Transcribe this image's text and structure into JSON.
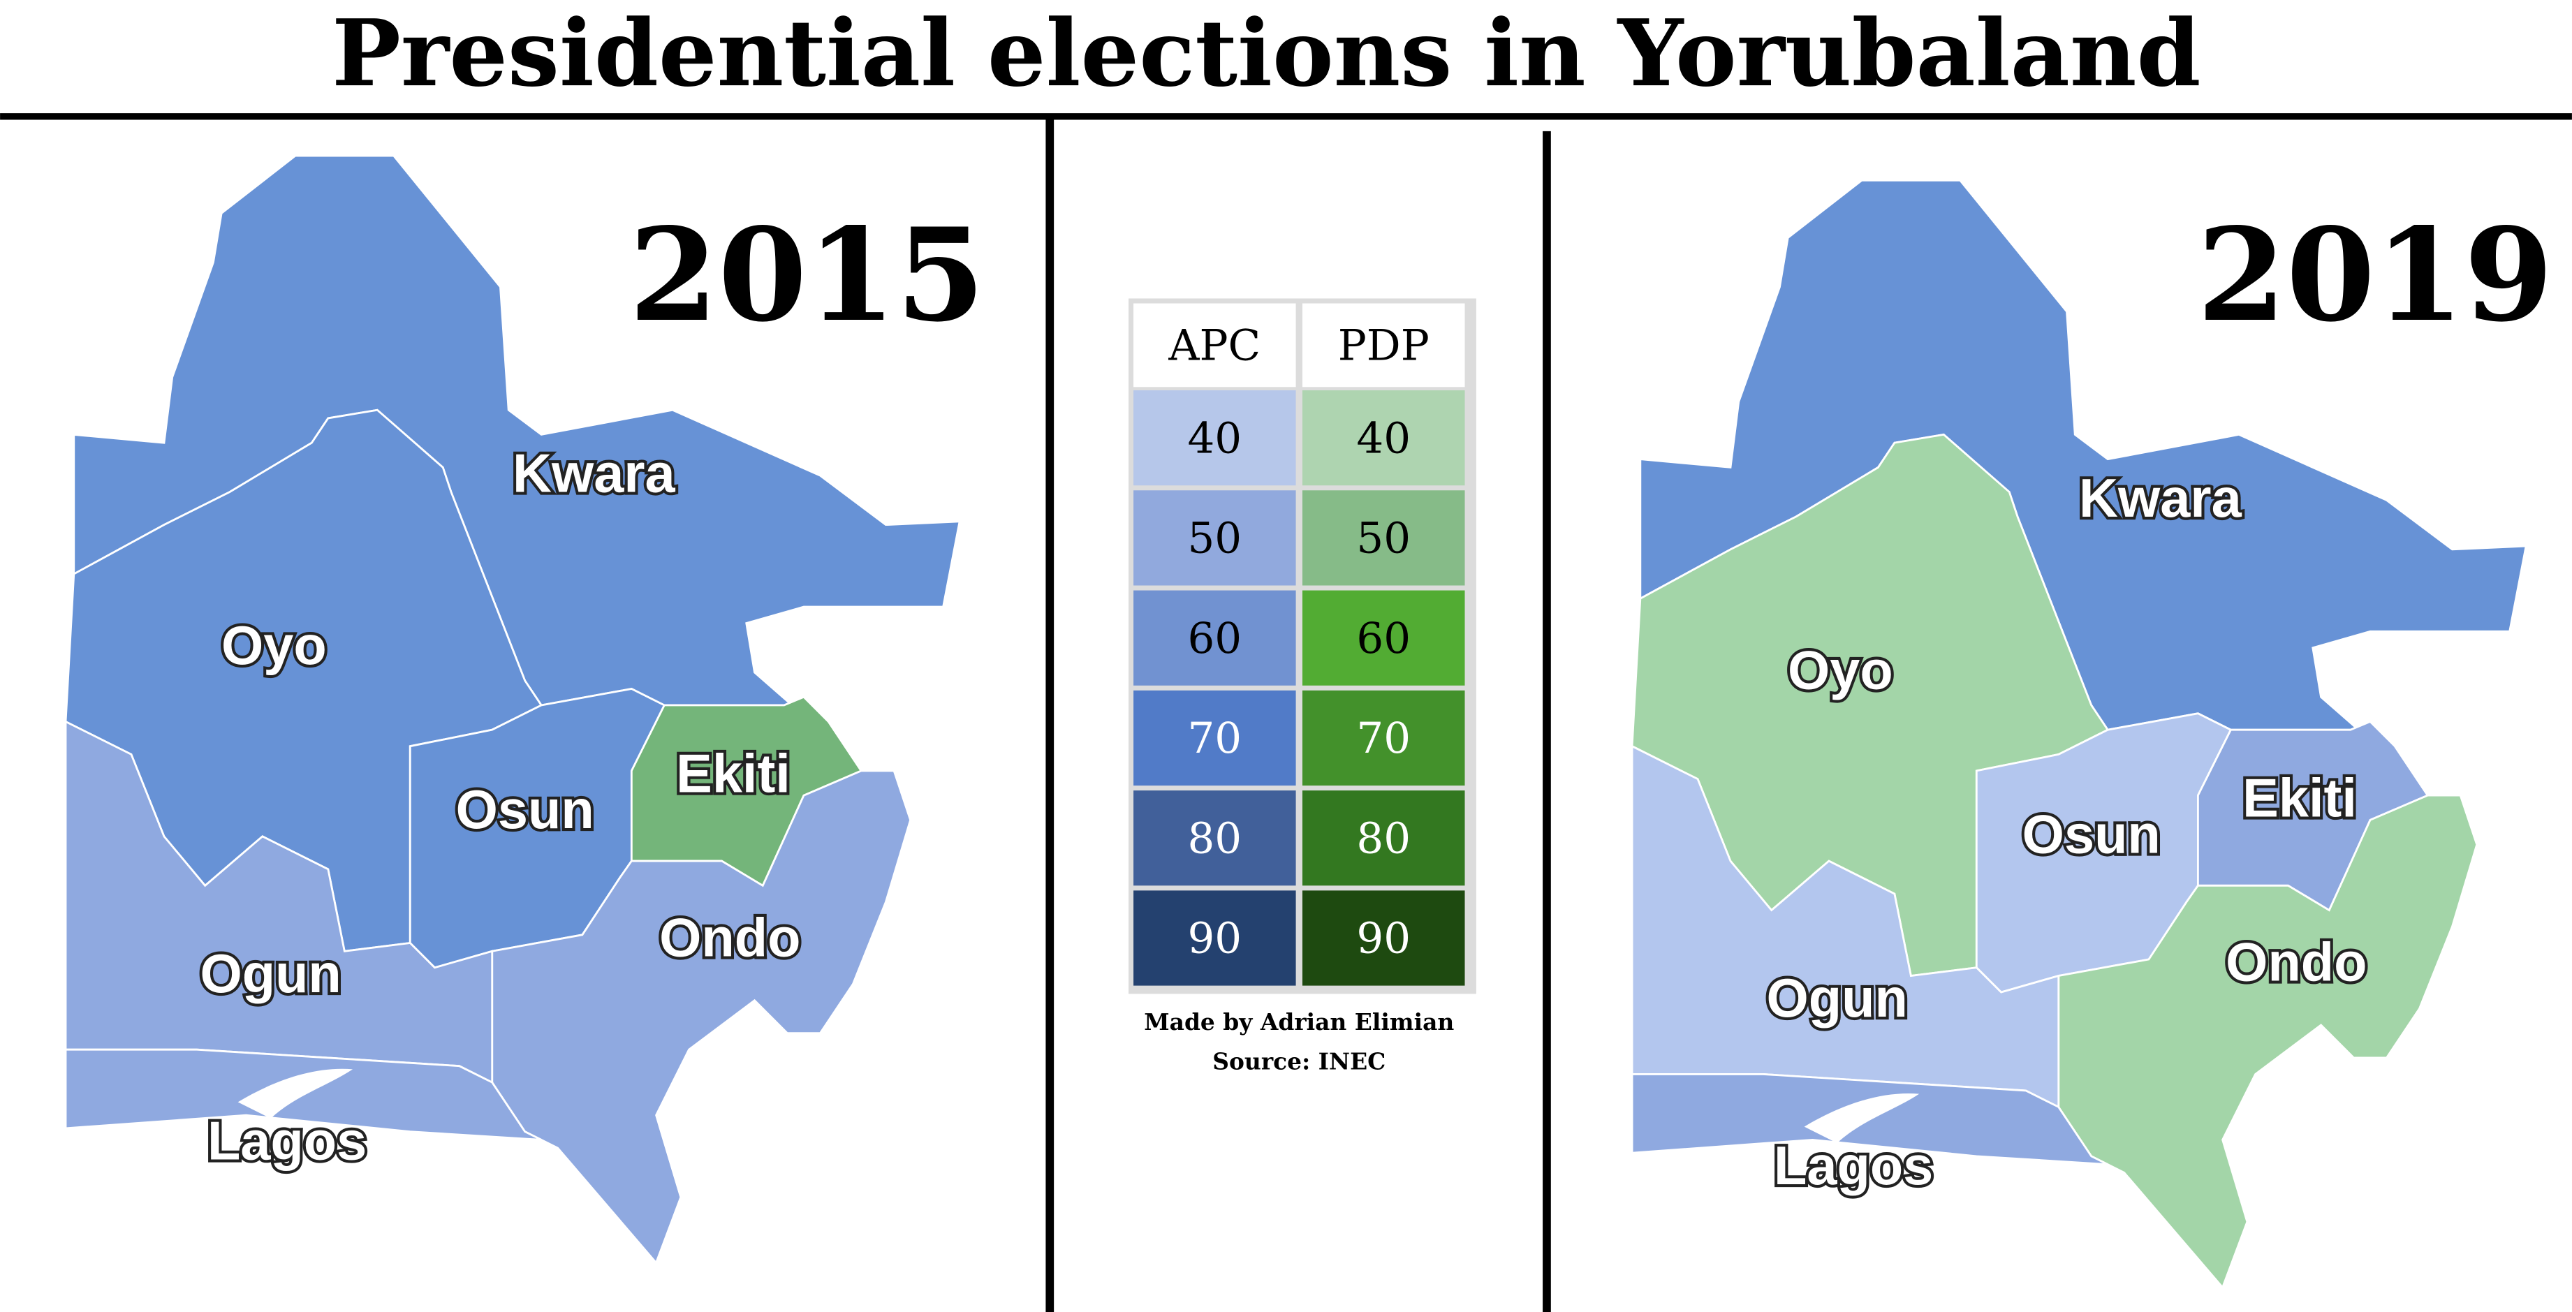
{
  "title": "Presidential elections in Yorubaland",
  "maps": [
    {
      "year": "2015",
      "states": [
        {
          "name": "Kwara",
          "party": "APC",
          "color": "#6792d6"
        },
        {
          "name": "Oyo",
          "party": "APC",
          "color": "#6792d6"
        },
        {
          "name": "Osun",
          "party": "APC",
          "color": "#6792d6"
        },
        {
          "name": "Ekiti",
          "party": "PDP",
          "color": "#74b57a"
        },
        {
          "name": "Ondo",
          "party": "APC",
          "color": "#8fa9e0"
        },
        {
          "name": "Ogun",
          "party": "APC",
          "color": "#8fa9e0"
        },
        {
          "name": "Lagos",
          "party": "APC",
          "color": "#8fa9e0"
        }
      ]
    },
    {
      "year": "2019",
      "states": [
        {
          "name": "Kwara",
          "party": "APC",
          "color": "#6792d6"
        },
        {
          "name": "Oyo",
          "party": "PDP",
          "color": "#a3d5a8"
        },
        {
          "name": "Osun",
          "party": "APC",
          "color": "#b3c6ee"
        },
        {
          "name": "Ekiti",
          "party": "APC",
          "color": "#8fa9e0"
        },
        {
          "name": "Ondo",
          "party": "PDP",
          "color": "#a3d5a8"
        },
        {
          "name": "Ogun",
          "party": "APC",
          "color": "#b3c6ee"
        },
        {
          "name": "Lagos",
          "party": "APC",
          "color": "#8fa9e0"
        }
      ]
    }
  ],
  "legend": {
    "headers": [
      "APC",
      "PDP"
    ],
    "rows": [
      {
        "value": "40",
        "apc": "#b6c7ea",
        "pdp": "#aed4b0",
        "text": "#000"
      },
      {
        "value": "50",
        "apc": "#91a9dd",
        "pdp": "#86bb88",
        "text": "#000"
      },
      {
        "value": "60",
        "apc": "#7192d1",
        "pdp": "#52ac33",
        "text": "#000"
      },
      {
        "value": "70",
        "apc": "#517bc8",
        "pdp": "#43912b",
        "text": "#fff"
      },
      {
        "value": "80",
        "apc": "#41609a",
        "pdp": "#337820",
        "text": "#fff"
      },
      {
        "value": "90",
        "apc": "#24416f",
        "pdp": "#1e4a10",
        "text": "#fff"
      }
    ]
  },
  "credits": {
    "author": "Made by Adrian Elimian",
    "source": "Source: INEC"
  }
}
